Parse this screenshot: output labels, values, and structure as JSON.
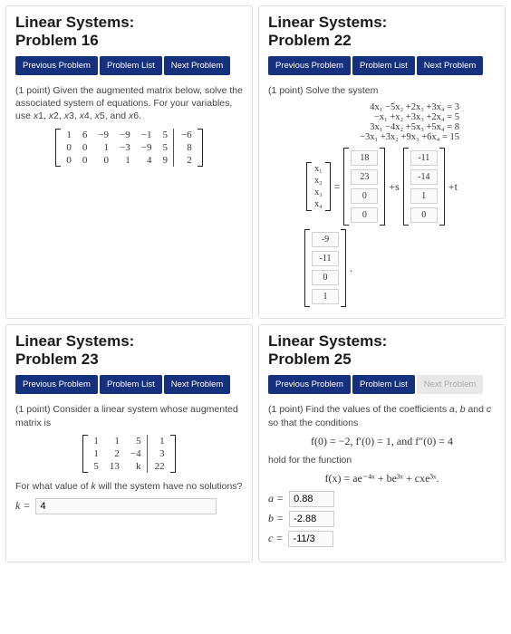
{
  "nav": {
    "prev": "Previous Problem",
    "list": "Problem List",
    "next": "Next Problem"
  },
  "p16": {
    "title": "Linear Systems:\nProblem 16",
    "prompt": "(1 point) Given the augmented matrix below, solve the associated system of equations. For your variables, use x1, x2, x3, x4, x5, and x6.",
    "matrix": {
      "rows": [
        [
          "1",
          "6",
          "−9",
          "−9",
          "−1",
          "5",
          "−6"
        ],
        [
          "0",
          "0",
          "1",
          "−3",
          "−9",
          "5",
          "8"
        ],
        [
          "0",
          "0",
          "0",
          "1",
          "4",
          "9",
          "2"
        ]
      ],
      "aug_col": 6
    }
  },
  "p22": {
    "title": "Linear Systems:\nProblem 22",
    "prompt": "(1 point) Solve the system",
    "system": [
      "4x₁  −5x₂  +2x₃  +3x₄ =   3",
      "−x₁   +x₂  +3x₃  +2x₄ =   5",
      "3x₁  −4x₂  +5x₃  +5x₄ =   8",
      "−3x₁  +3x₂  +9x₃  +6x₄ =  15"
    ],
    "var_labels": [
      "x₁",
      "x₂",
      "x₃",
      "x₄"
    ],
    "col1": [
      "18",
      "23",
      "0",
      "0"
    ],
    "col2_label": "+s",
    "col2": [
      "-11",
      "-14",
      "1",
      "0"
    ],
    "col3_label": "+t",
    "col3": [
      "-9",
      "-11",
      "0",
      "1"
    ]
  },
  "p23": {
    "title": "Linear Systems:\nProblem 23",
    "prompt": "(1 point) Consider a linear system whose augmented matrix is",
    "matrix": {
      "rows": [
        [
          "1",
          "1",
          "5",
          "1"
        ],
        [
          "1",
          "2",
          "−4",
          "3"
        ],
        [
          "5",
          "13",
          "k",
          "22"
        ]
      ],
      "aug_col": 3
    },
    "question": "For what value of k will the system have no solutions?",
    "answer_label": "k =",
    "answer_value": "4"
  },
  "p25": {
    "title": "Linear Systems:\nProblem 25",
    "next_disabled": true,
    "prompt": "(1 point) Find the values of the coefficients a, b and c so that the conditions",
    "cond": "f(0) = −2,   f′(0) = 1,   and   f″(0) = 4",
    "prompt2": "hold for the function",
    "func": "f(x) = ae⁻⁴ˣ + be³ˣ + cxe³ˣ.",
    "answers": [
      {
        "label": "a =",
        "value": "0.88"
      },
      {
        "label": "b =",
        "value": "-2.88"
      },
      {
        "label": "c =",
        "value": "-11/3"
      }
    ]
  },
  "colors": {
    "btn_bg": "#15317e",
    "btn_fg": "#ffffff",
    "card_border": "#e0e0e0"
  }
}
